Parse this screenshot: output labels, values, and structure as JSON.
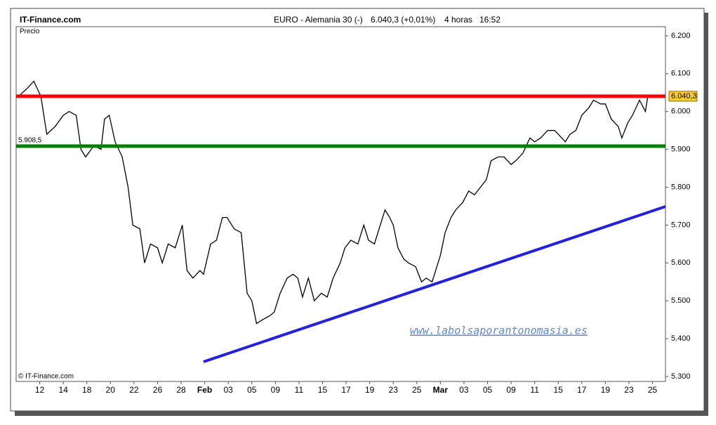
{
  "chart_data": {
    "type": "line",
    "brand": "IT-Finance.com",
    "title": "EURO - Alemania 30 (-)",
    "quote": "6.040,3 (+0,01%)",
    "timeframe": "4 horas",
    "time": "16:52",
    "ylabel": "Precio",
    "copyright": "© IT-Finance.com",
    "watermark": "www.labolsaporantonomasia.es",
    "color": "#000000",
    "x": [
      -1.8,
      -1.1,
      -0.5,
      0.1,
      0.6,
      1.3,
      2.0,
      2.5,
      3.1,
      3.5,
      3.9,
      4.6,
      5.2,
      5.5,
      5.9,
      6.4,
      7.0,
      7.5,
      7.9,
      8.5,
      8.9,
      9.4,
      10.0,
      10.4,
      10.9,
      11.5,
      12.1,
      12.5,
      13.0,
      13.6,
      13.9,
      14.5,
      15.0,
      15.5,
      15.9,
      16.5,
      17.1,
      17.6,
      18.0,
      18.4,
      18.9,
      19.5,
      19.9,
      20.4,
      21.0,
      21.5,
      21.9,
      22.3,
      22.8,
      23.3,
      23.9,
      24.4,
      24.9,
      25.5,
      25.9,
      26.4,
      27.0,
      27.5,
      27.9,
      28.4,
      28.8,
      29.3,
      29.7,
      30.0,
      30.4,
      30.9,
      31.3,
      31.9,
      32.4,
      32.8,
      33.3,
      33.6,
      34.0,
      34.4,
      34.9,
      35.3,
      35.9,
      36.4,
      36.9,
      37.4,
      37.9,
      38.3,
      38.9,
      39.4,
      40.0,
      40.4,
      41.0,
      41.6,
      42.0,
      42.5,
      43.1,
      43.7,
      44.0,
      44.6,
      45.0,
      45.5,
      46.0,
      46.6,
      47.0,
      47.6,
      48.0,
      48.5,
      49.1,
      49.4,
      49.9,
      50.3,
      50.9,
      51.4,
      51.6
    ],
    "values": [
      6040,
      6060,
      6080,
      6040,
      5940,
      5960,
      5990,
      6000,
      5990,
      5900,
      5880,
      5910,
      5900,
      5980,
      5990,
      5920,
      5880,
      5800,
      5700,
      5690,
      5600,
      5650,
      5640,
      5600,
      5650,
      5640,
      5700,
      5580,
      5560,
      5580,
      5570,
      5650,
      5660,
      5720,
      5720,
      5690,
      5680,
      5520,
      5500,
      5440,
      5450,
      5460,
      5470,
      5520,
      5560,
      5570,
      5560,
      5510,
      5560,
      5500,
      5520,
      5510,
      5560,
      5600,
      5640,
      5660,
      5650,
      5700,
      5660,
      5650,
      5690,
      5740,
      5720,
      5700,
      5640,
      5610,
      5600,
      5590,
      5550,
      5560,
      5550,
      5580,
      5620,
      5680,
      5720,
      5740,
      5760,
      5790,
      5780,
      5800,
      5820,
      5870,
      5880,
      5880,
      5860,
      5870,
      5890,
      5930,
      5920,
      5930,
      5950,
      5950,
      5940,
      5920,
      5940,
      5950,
      5990,
      6010,
      6030,
      6020,
      6020,
      5980,
      5960,
      5930,
      5970,
      5990,
      6030,
      6000,
      6040
    ],
    "levels": [
      {
        "value": 6040.3,
        "label": "6.040,3",
        "color": "#ff0000"
      },
      {
        "value": 5908.5,
        "label": "5.908,5",
        "color": "#008000"
      }
    ],
    "trendline": {
      "x": [
        13.9,
        53.1
      ],
      "y": [
        5339,
        5749
      ],
      "color": "#2222dd"
    },
    "xlim": [
      -2,
      53.1
    ],
    "ylim": [
      5287,
      6224
    ],
    "yticks": [
      {
        "value": 5300,
        "label": "5.300"
      },
      {
        "value": 5400,
        "label": "5.400"
      },
      {
        "value": 5500,
        "label": "5.500"
      },
      {
        "value": 5600,
        "label": "5.600"
      },
      {
        "value": 5700,
        "label": "5.700"
      },
      {
        "value": 5800,
        "label": "5.800"
      },
      {
        "value": 5900,
        "label": "5.900"
      },
      {
        "value": 6000,
        "label": "6.000"
      },
      {
        "value": 6100,
        "label": "6.100"
      },
      {
        "value": 6200,
        "label": "6.200"
      }
    ],
    "xticks": [
      {
        "value": 0,
        "label": "12"
      },
      {
        "value": 2,
        "label": "14"
      },
      {
        "value": 4,
        "label": "18"
      },
      {
        "value": 6,
        "label": "20"
      },
      {
        "value": 8,
        "label": "22"
      },
      {
        "value": 10,
        "label": "26"
      },
      {
        "value": 12,
        "label": "28"
      },
      {
        "value": 14,
        "label": "Feb"
      },
      {
        "value": 16,
        "label": "03"
      },
      {
        "value": 18,
        "label": "05"
      },
      {
        "value": 20,
        "label": "09"
      },
      {
        "value": 22,
        "label": "11"
      },
      {
        "value": 24,
        "label": "15"
      },
      {
        "value": 26,
        "label": "17"
      },
      {
        "value": 28,
        "label": "19"
      },
      {
        "value": 30,
        "label": "23"
      },
      {
        "value": 32,
        "label": "25"
      },
      {
        "value": 34,
        "label": "Mar"
      },
      {
        "value": 36,
        "label": "03"
      },
      {
        "value": 38,
        "label": "05"
      },
      {
        "value": 40,
        "label": "09"
      },
      {
        "value": 42,
        "label": "11"
      },
      {
        "value": 44,
        "label": "15"
      },
      {
        "value": 46,
        "label": "17"
      },
      {
        "value": 48,
        "label": "19"
      },
      {
        "value": 50,
        "label": "23"
      },
      {
        "value": 52,
        "label": "25"
      }
    ]
  }
}
